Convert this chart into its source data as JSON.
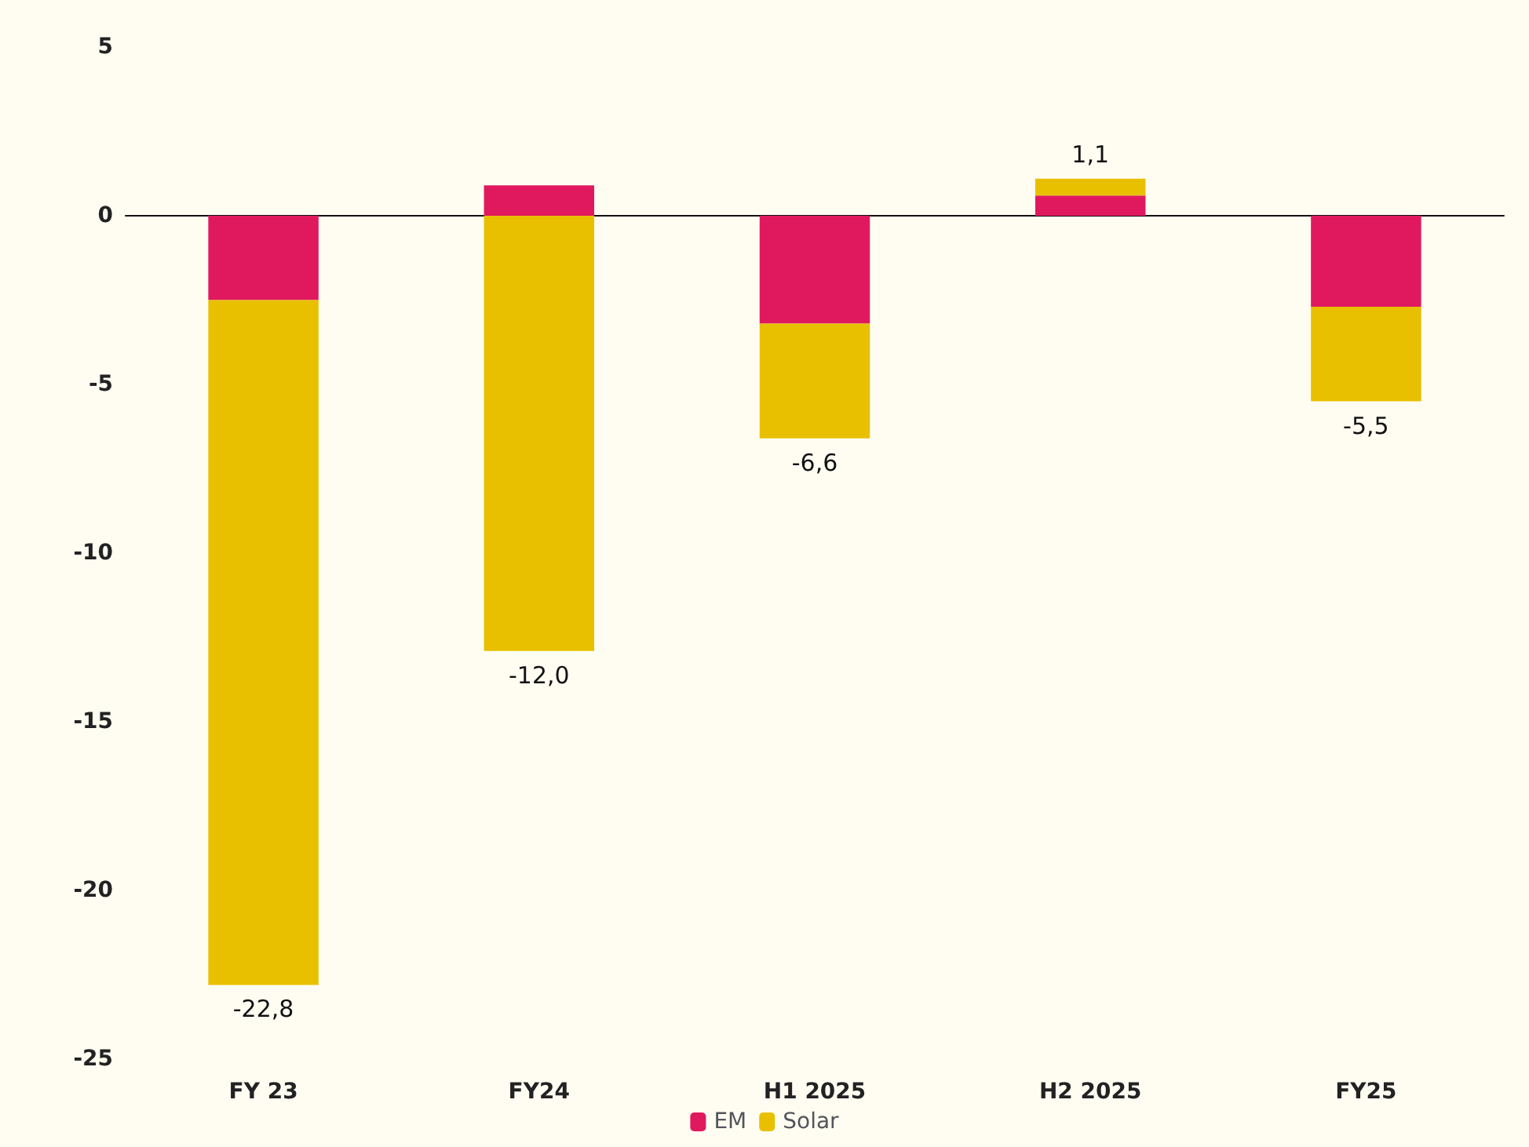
{
  "chart_data": {
    "type": "bar",
    "stacked": true,
    "categories": [
      "FY 23",
      "FY24",
      "H1 2025",
      "H2 2025",
      "FY25"
    ],
    "series": [
      {
        "name": "EM",
        "color": "#e0195f",
        "values": [
          -2.5,
          0.9,
          -3.2,
          0.6,
          -2.7
        ]
      },
      {
        "name": "Solar",
        "color": "#e8c000",
        "values": [
          -20.3,
          -12.9,
          -3.4,
          0.5,
          -2.8
        ]
      }
    ],
    "totals": [
      "-22,8",
      "-12,0",
      "-6,6",
      "1,1",
      "-5,5"
    ],
    "ylim": [
      -25,
      5
    ],
    "yticks": [
      -25,
      -20,
      -15,
      -10,
      -5,
      0,
      5
    ],
    "legend": "bottom"
  }
}
